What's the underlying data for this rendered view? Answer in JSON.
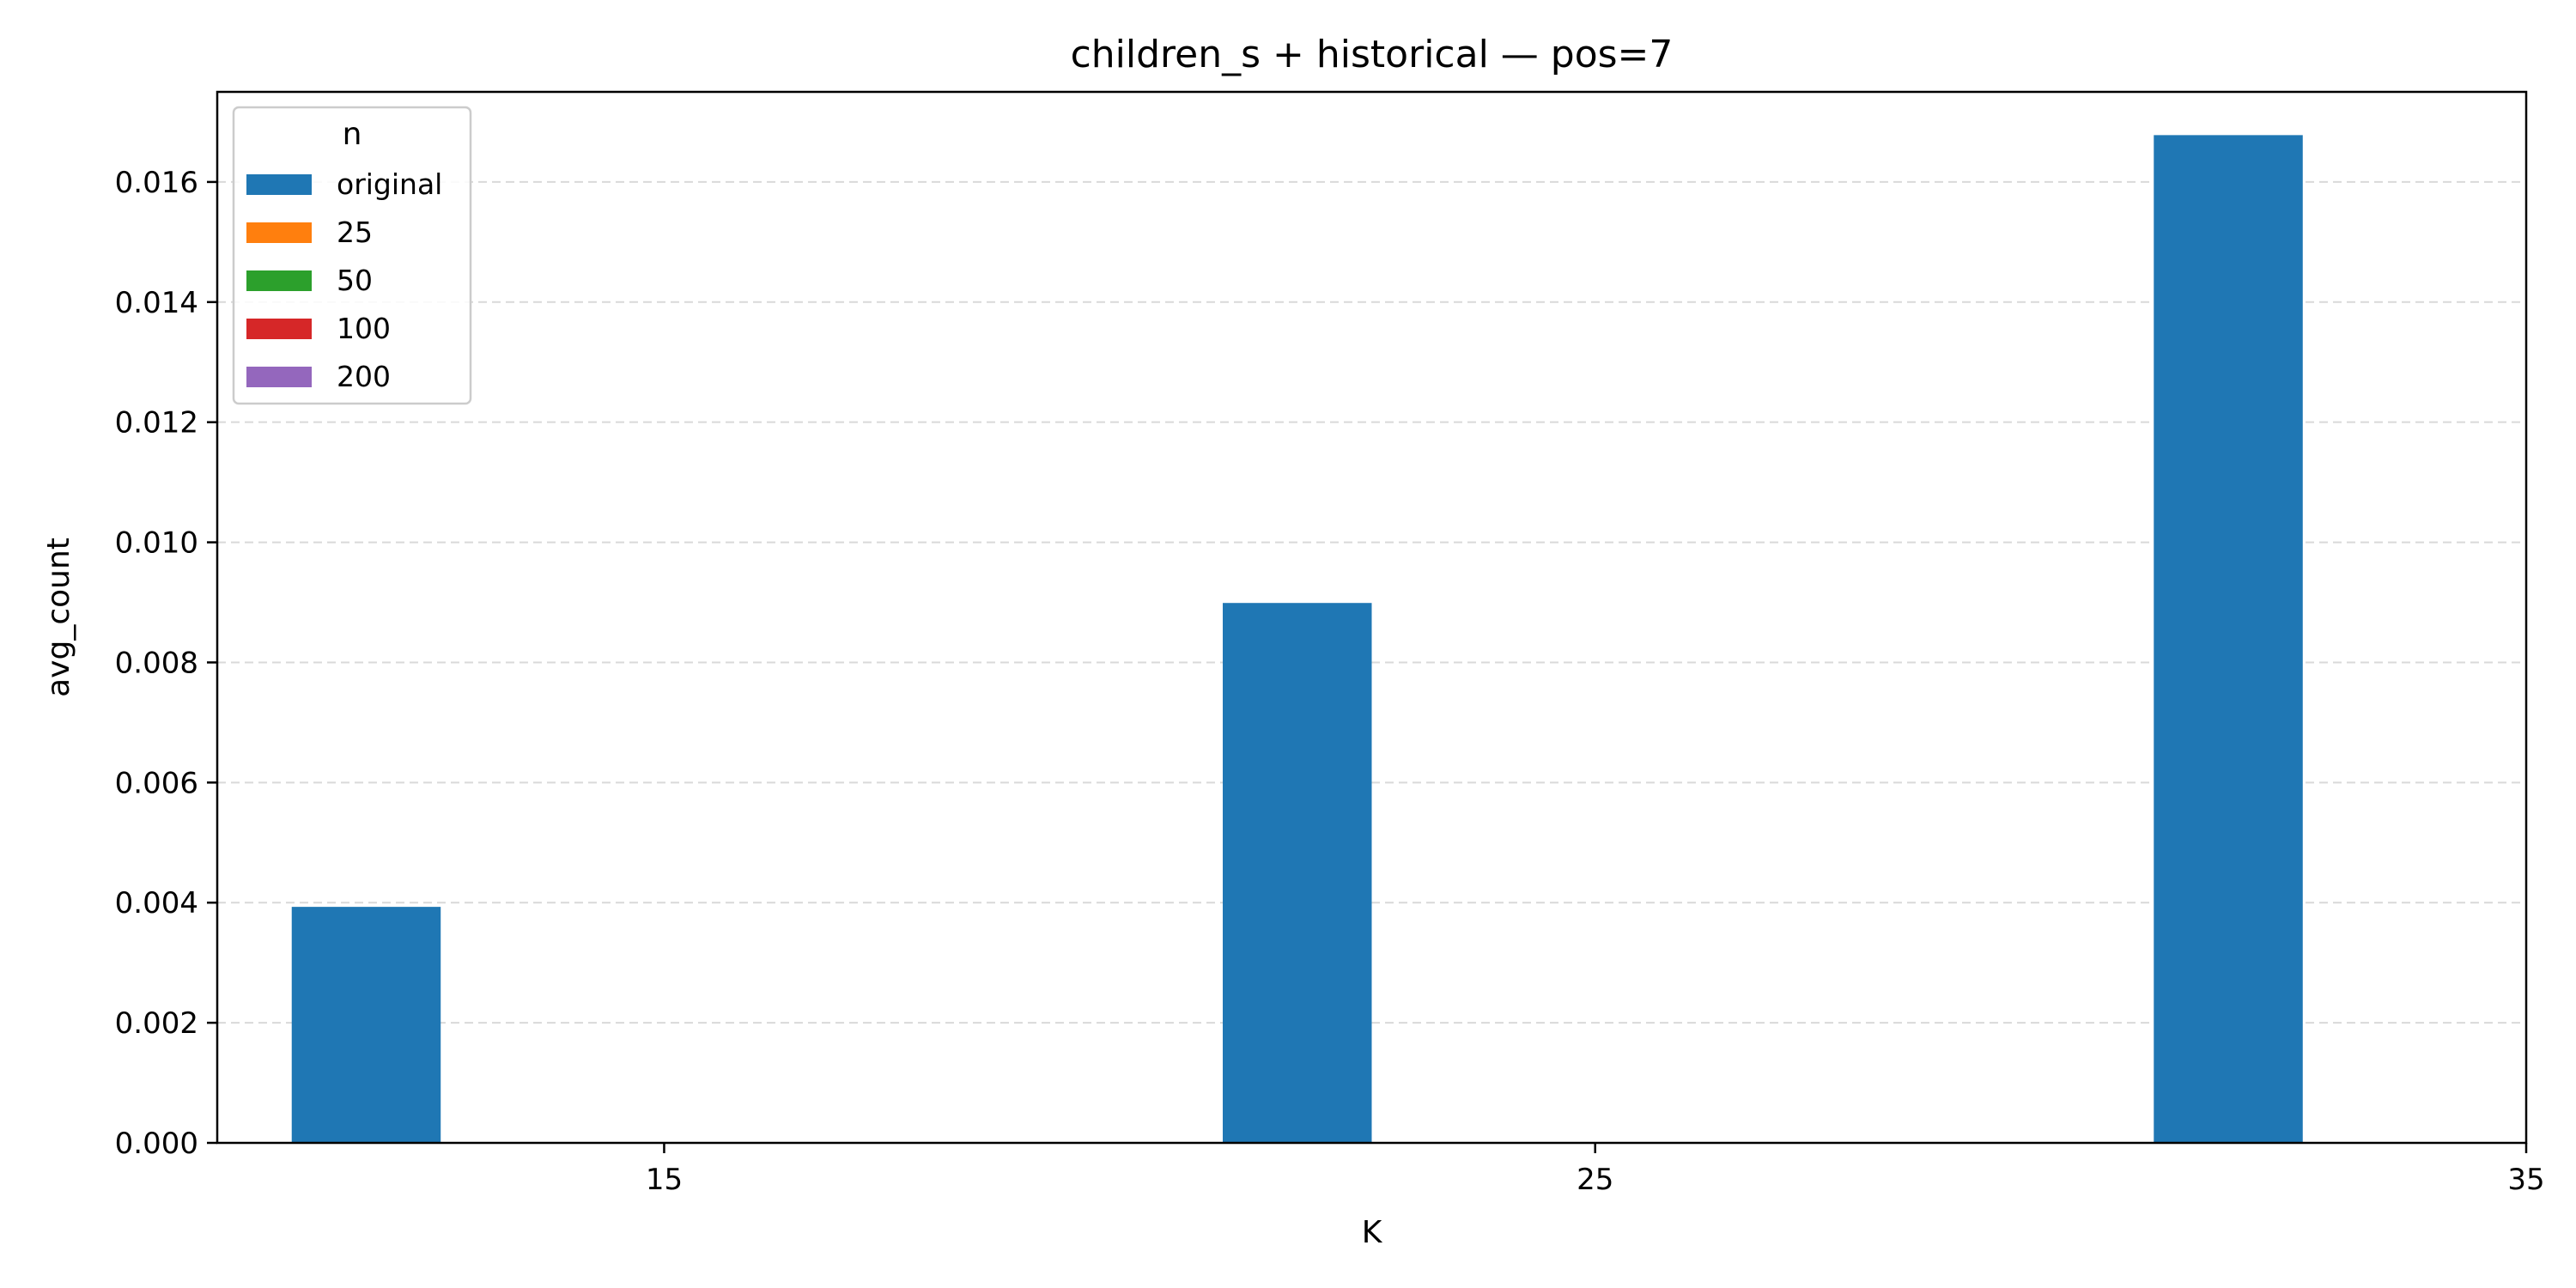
{
  "chart_data": {
    "type": "bar",
    "title": "children_s + historical — pos=7",
    "xlabel": "K",
    "ylabel": "avg_count",
    "x_ticks": [
      "15",
      "25",
      "35"
    ],
    "categories": [
      "15",
      "25",
      "35"
    ],
    "xlim": [
      10.2,
      35
    ],
    "ylim": [
      0,
      0.0175
    ],
    "y_ticks": [
      0.0,
      0.002,
      0.004,
      0.006,
      0.008,
      0.01,
      0.012,
      0.014,
      0.016
    ],
    "y_tick_labels": [
      "0.000",
      "0.002",
      "0.004",
      "0.006",
      "0.008",
      "0.010",
      "0.012",
      "0.014",
      "0.016"
    ],
    "grid": "y-dashed",
    "legend": {
      "title": "n",
      "placement": "top-left"
    },
    "series": [
      {
        "name": "original",
        "color": "#1f77b4",
        "values": [
          0.00393,
          0.00899,
          0.01678
        ]
      },
      {
        "name": "25",
        "color": "#ff7f0e",
        "values": [
          0,
          0,
          0
        ]
      },
      {
        "name": "50",
        "color": "#2ca02c",
        "values": [
          0,
          0,
          0
        ]
      },
      {
        "name": "100",
        "color": "#d62728",
        "values": [
          0,
          0,
          0
        ]
      },
      {
        "name": "200",
        "color": "#9467bd",
        "values": [
          0,
          0,
          0
        ]
      }
    ]
  }
}
